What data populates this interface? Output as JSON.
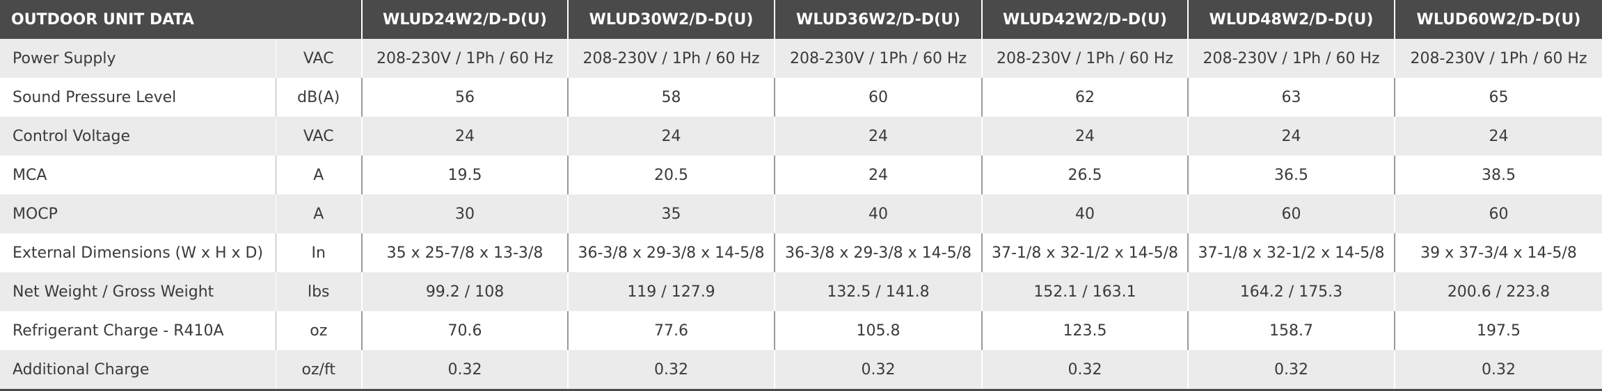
{
  "table": {
    "title": "OUTDOOR UNIT DATA",
    "models": [
      "WLUD24W2/D-D(U)",
      "WLUD30W2/D-D(U)",
      "WLUD36W2/D-D(U)",
      "WLUD42W2/D-D(U)",
      "WLUD48W2/D-D(U)",
      "WLUD60W2/D-D(U)"
    ],
    "rows": [
      {
        "label": "Power Supply",
        "unit": "VAC",
        "values": [
          "208-230V / 1Ph / 60 Hz",
          "208-230V / 1Ph / 60 Hz",
          "208-230V / 1Ph / 60 Hz",
          "208-230V / 1Ph / 60 Hz",
          "208-230V / 1Ph / 60 Hz",
          "208-230V / 1Ph / 60 Hz"
        ]
      },
      {
        "label": "Sound Pressure Level",
        "unit": "dB(A)",
        "values": [
          "56",
          "58",
          "60",
          "62",
          "63",
          "65"
        ]
      },
      {
        "label": "Control Voltage",
        "unit": "VAC",
        "values": [
          "24",
          "24",
          "24",
          "24",
          "24",
          "24"
        ]
      },
      {
        "label": "MCA",
        "unit": "A",
        "values": [
          "19.5",
          "20.5",
          "24",
          "26.5",
          "36.5",
          "38.5"
        ]
      },
      {
        "label": "MOCP",
        "unit": "A",
        "values": [
          "30",
          "35",
          "40",
          "40",
          "60",
          "60"
        ]
      },
      {
        "label": "External Dimensions (W x H x D)",
        "unit": "In",
        "values": [
          "35 x 25-7/8 x 13-3/8",
          "36-3/8 x 29-3/8 x 14-5/8",
          "36-3/8 x 29-3/8 x 14-5/8",
          "37-1/8 x 32-1/2 x 14-5/8",
          "37-1/8 x 32-1/2 x 14-5/8",
          "39 x 37-3/4 x 14-5/8"
        ]
      },
      {
        "label": "Net Weight / Gross Weight",
        "unit": "lbs",
        "values": [
          "99.2 / 108",
          "119 / 127.9",
          "132.5 / 141.8",
          "152.1 / 163.1",
          "164.2 / 175.3",
          "200.6 / 223.8"
        ]
      },
      {
        "label": "Refrigerant Charge - R410A",
        "unit": "oz",
        "values": [
          "70.6",
          "77.6",
          "105.8",
          "123.5",
          "158.7",
          "197.5"
        ]
      },
      {
        "label": "Additional Charge",
        "unit": "oz/ft",
        "values": [
          "0.32",
          "0.32",
          "0.32",
          "0.32",
          "0.32",
          "0.32"
        ]
      }
    ]
  }
}
